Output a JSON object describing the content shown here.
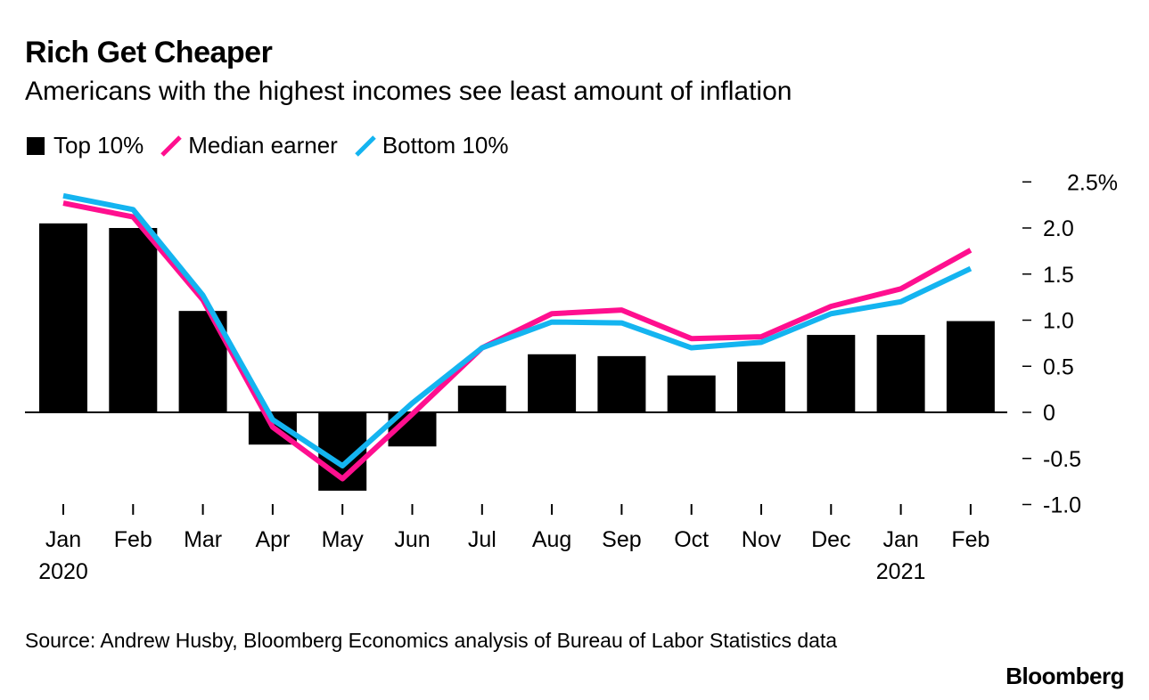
{
  "title": "Rich Get Cheaper",
  "subtitle": "Americans with the highest incomes see least amount of inflation",
  "legend": {
    "top10": "Top 10%",
    "median": "Median earner",
    "bottom10": "Bottom 10%"
  },
  "colors": {
    "top10": "#000000",
    "median": "#ff0f8f",
    "bottom10": "#14b4f0"
  },
  "source": "Source: Andrew Husby, Bloomberg Economics analysis of Bureau of Labor Statistics data",
  "brand": "Bloomberg",
  "chart_data": {
    "type": "bar",
    "title": "Rich Get Cheaper",
    "categories": [
      "Jan",
      "Feb",
      "Mar",
      "Apr",
      "May",
      "Jun",
      "Jul",
      "Aug",
      "Sep",
      "Oct",
      "Nov",
      "Dec",
      "Jan",
      "Feb"
    ],
    "year_labels": [
      {
        "index": 0,
        "label": "2020"
      },
      {
        "index": 12,
        "label": "2021"
      }
    ],
    "y_ticks": [
      {
        "value": 2.5,
        "label": "2.5%"
      },
      {
        "value": 2.0,
        "label": "2.0"
      },
      {
        "value": 1.5,
        "label": "1.5"
      },
      {
        "value": 1.0,
        "label": "1.0"
      },
      {
        "value": 0.5,
        "label": "0.5"
      },
      {
        "value": 0,
        "label": "0"
      },
      {
        "value": -0.5,
        "label": "-0.5"
      },
      {
        "value": -1.0,
        "label": "-1.0"
      }
    ],
    "ylim": [
      -1.0,
      2.5
    ],
    "y_axis_side": "right",
    "series": [
      {
        "name": "Top 10%",
        "kind": "bar",
        "values": [
          2.05,
          2.0,
          1.1,
          -0.35,
          -0.85,
          -0.37,
          0.29,
          0.63,
          0.61,
          0.4,
          0.55,
          0.84,
          0.84,
          0.99
        ]
      },
      {
        "name": "Median earner",
        "kind": "line",
        "values": [
          2.27,
          2.12,
          1.22,
          -0.16,
          -0.72,
          -0.02,
          0.7,
          1.07,
          1.11,
          0.8,
          0.82,
          1.15,
          1.34,
          1.76
        ]
      },
      {
        "name": "Bottom 10%",
        "kind": "line",
        "values": [
          2.35,
          2.2,
          1.27,
          -0.08,
          -0.58,
          0.1,
          0.7,
          0.98,
          0.97,
          0.7,
          0.76,
          1.07,
          1.2,
          1.56
        ]
      }
    ]
  }
}
